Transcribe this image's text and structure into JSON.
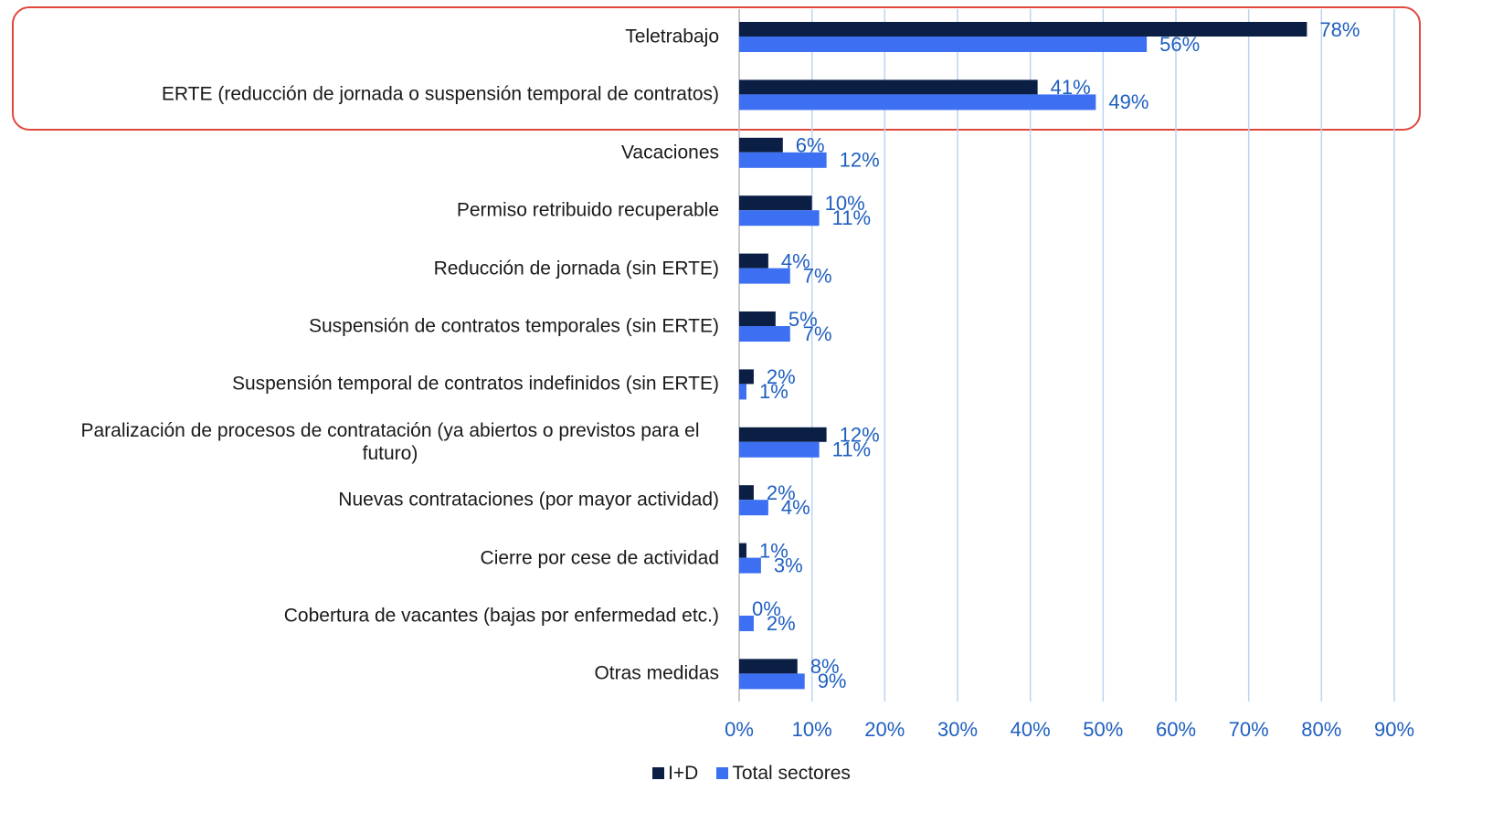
{
  "chart_data": {
    "type": "bar",
    "orientation": "horizontal",
    "categories": [
      "Teletrabajo",
      "ERTE (reducción de jornada o suspensión temporal de contratos)",
      "Vacaciones",
      "Permiso retribuido recuperable",
      "Reducción de jornada (sin ERTE)",
      "Suspensión de contratos temporales (sin ERTE)",
      "Suspensión temporal de contratos indefinidos (sin ERTE)",
      "Paralización de procesos de contratación (ya abiertos o previstos para el futuro)",
      "Nuevas contrataciones (por mayor actividad)",
      "Cierre por cese de actividad",
      "Cobertura de vacantes (bajas por enfermedad etc.)",
      "Otras medidas"
    ],
    "series": [
      {
        "name": "I+D",
        "color": "#0b1f45",
        "values": [
          78,
          41,
          6,
          10,
          4,
          5,
          2,
          12,
          2,
          1,
          0,
          8
        ],
        "value_labels": [
          "78%",
          "41%",
          "6%",
          "10%",
          "4%",
          "5%",
          "2%",
          "12%",
          "2%",
          "1%",
          "0%",
          "8%"
        ]
      },
      {
        "name": "Total sectores",
        "color": "#3d6ff2",
        "values": [
          56,
          49,
          12,
          11,
          7,
          7,
          1,
          11,
          4,
          3,
          2,
          9
        ],
        "value_labels": [
          "56%",
          "49%",
          "12%",
          "11%",
          "7%",
          "7%",
          "1%",
          "11%",
          "4%",
          "3%",
          "2%",
          "9%"
        ]
      }
    ],
    "xlim": [
      0,
      90
    ],
    "xticks": [
      {
        "value": 0,
        "label": "0%"
      },
      {
        "value": 10,
        "label": "10%"
      },
      {
        "value": 20,
        "label": "20%"
      },
      {
        "value": 30,
        "label": "30%"
      },
      {
        "value": 40,
        "label": "40%"
      },
      {
        "value": 50,
        "label": "50%"
      },
      {
        "value": 60,
        "label": "60%"
      },
      {
        "value": 70,
        "label": "70%"
      },
      {
        "value": 80,
        "label": "80%"
      },
      {
        "value": 90,
        "label": "90%"
      }
    ],
    "grid": true,
    "legend": "bottom"
  }
}
